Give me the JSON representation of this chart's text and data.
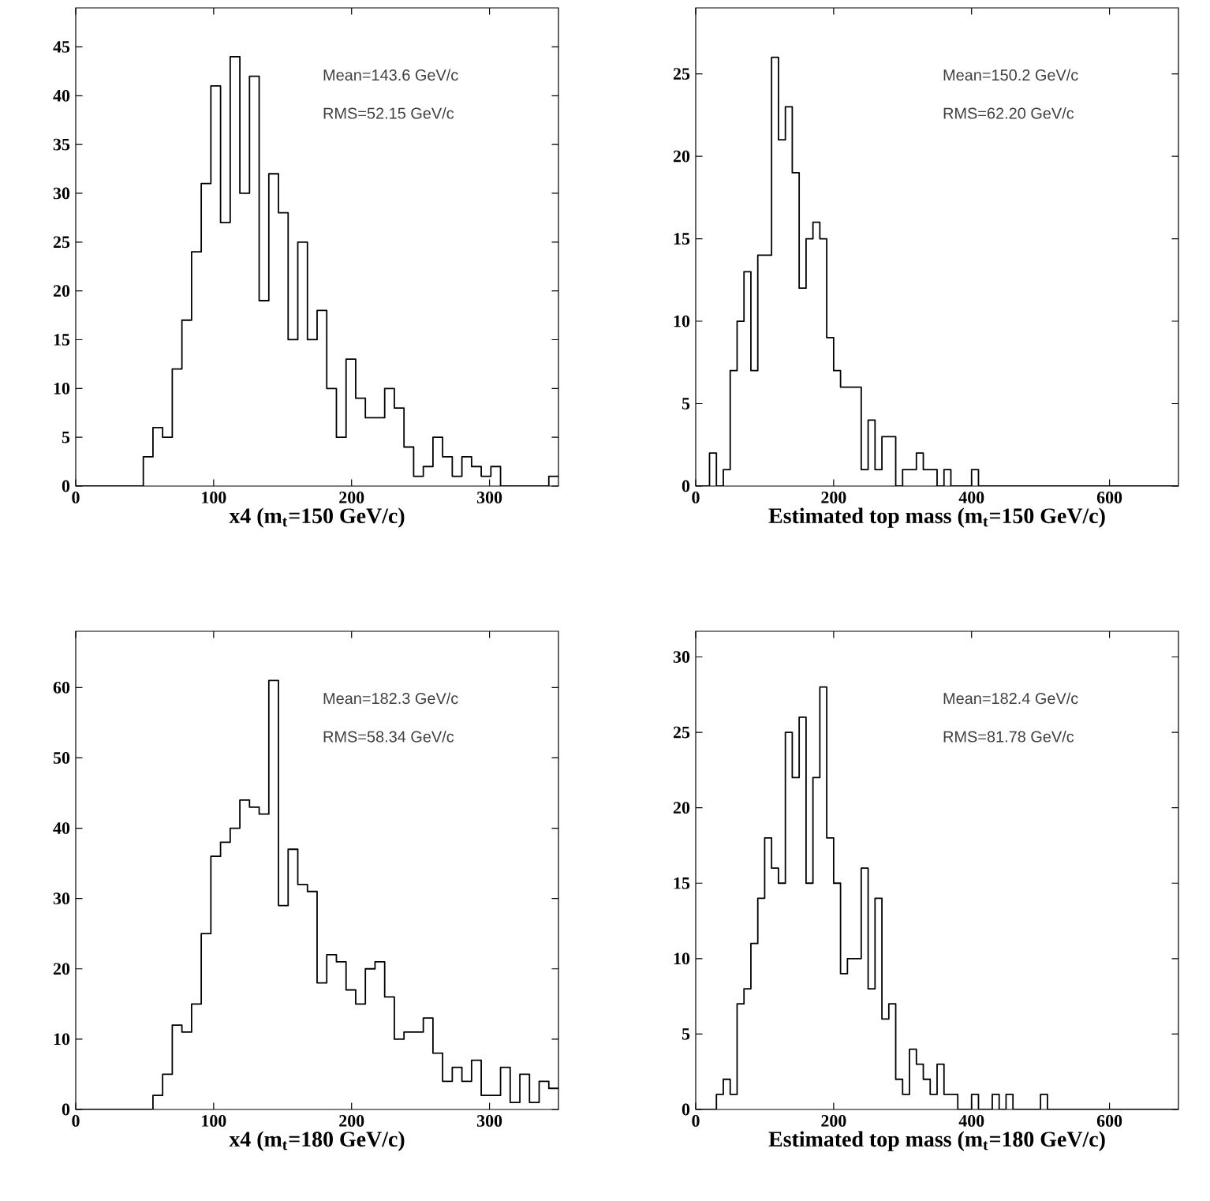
{
  "chart_data": [
    {
      "type": "histogram",
      "xlabel": "x4 (m$_{t}$=150 GeV/c)",
      "annotations": [
        "Mean=143.6 GeV/c",
        "RMS=52.15 GeV/c"
      ],
      "color": "#000000",
      "bins": [
        0,
        7,
        14,
        21,
        28,
        35,
        42,
        49,
        56,
        63,
        70,
        77,
        84,
        91,
        98,
        105,
        112,
        119,
        126,
        133,
        140,
        147,
        154,
        161,
        168,
        175,
        182,
        189,
        196,
        203,
        210,
        217,
        224,
        231,
        238,
        245,
        252,
        259,
        266,
        273,
        280,
        287,
        294,
        301,
        308,
        315,
        322,
        329,
        336,
        343,
        350
      ],
      "values": [
        0,
        0,
        0,
        0,
        0,
        0,
        0,
        3,
        6,
        5,
        12,
        17,
        24,
        31,
        41,
        27,
        44,
        30,
        42,
        19,
        32,
        28,
        15,
        25,
        15,
        18,
        10,
        5,
        13,
        9,
        7,
        7,
        10,
        8,
        4,
        1,
        2,
        5,
        3,
        1,
        3,
        2,
        1,
        2,
        0,
        0,
        0,
        0,
        0,
        1
      ],
      "xlim": [
        0,
        350
      ],
      "ylim": [
        0,
        49
      ],
      "xticks": [
        0,
        100,
        200,
        300
      ],
      "yticks": [
        0,
        5,
        10,
        15,
        20,
        25,
        30,
        35,
        40,
        45
      ]
    },
    {
      "type": "histogram",
      "xlabel": "Estimated top mass (m$_{t}$=150 GeV/c)",
      "annotations": [
        "Mean=150.2 GeV/c",
        "RMS=62.20 GeV/c"
      ],
      "color": "#000000",
      "bins": [
        0,
        10,
        20,
        30,
        40,
        50,
        60,
        70,
        80,
        90,
        100,
        110,
        120,
        130,
        140,
        150,
        160,
        170,
        180,
        190,
        200,
        210,
        220,
        230,
        240,
        250,
        260,
        270,
        280,
        290,
        300,
        310,
        320,
        330,
        340,
        350,
        360,
        370,
        380,
        390,
        400,
        410,
        420,
        430,
        440,
        450,
        460,
        470,
        480,
        490,
        500,
        510,
        520,
        530,
        540,
        550,
        560,
        570,
        580,
        590,
        600,
        610,
        620,
        630,
        640,
        650,
        660,
        670,
        680,
        690,
        700
      ],
      "values": [
        0,
        0,
        2,
        0,
        1,
        7,
        10,
        13,
        7,
        14,
        14,
        26,
        21,
        23,
        19,
        12,
        15,
        16,
        15,
        9,
        7,
        6,
        6,
        6,
        1,
        4,
        1,
        3,
        3,
        0,
        1,
        1,
        2,
        1,
        1,
        0,
        1,
        0,
        0,
        0,
        1,
        0,
        0,
        0,
        0,
        0,
        0,
        0,
        0,
        0,
        0,
        0,
        0,
        0,
        0,
        0,
        0,
        0,
        0,
        0,
        0,
        0,
        0,
        0,
        0,
        0,
        0,
        0,
        0,
        0
      ],
      "xlim": [
        0,
        700
      ],
      "ylim": [
        0,
        29
      ],
      "xticks": [
        0,
        200,
        400,
        600
      ],
      "yticks": [
        0,
        5,
        10,
        15,
        20,
        25
      ]
    },
    {
      "type": "histogram",
      "xlabel": "x4 (m$_{t}$=180 GeV/c)",
      "annotations": [
        "Mean=182.3 GeV/c",
        "RMS=58.34 GeV/c"
      ],
      "color": "#000000",
      "bins": [
        0,
        7,
        14,
        21,
        28,
        35,
        42,
        49,
        56,
        63,
        70,
        77,
        84,
        91,
        98,
        105,
        112,
        119,
        126,
        133,
        140,
        147,
        154,
        161,
        168,
        175,
        182,
        189,
        196,
        203,
        210,
        217,
        224,
        231,
        238,
        245,
        252,
        259,
        266,
        273,
        280,
        287,
        294,
        301,
        308,
        315,
        322,
        329,
        336,
        343,
        350
      ],
      "values": [
        0,
        0,
        0,
        0,
        0,
        0,
        0,
        0,
        2,
        5,
        12,
        11,
        15,
        25,
        36,
        38,
        40,
        44,
        43,
        42,
        61,
        29,
        37,
        32,
        31,
        18,
        22,
        21,
        17,
        15,
        20,
        21,
        16,
        10,
        11,
        11,
        13,
        8,
        4,
        6,
        4,
        7,
        2,
        2,
        6,
        1,
        5,
        1,
        4,
        3
      ],
      "xlim": [
        0,
        350
      ],
      "ylim": [
        0,
        68
      ],
      "xticks": [
        0,
        100,
        200,
        300
      ],
      "yticks": [
        0,
        10,
        20,
        30,
        40,
        50,
        60
      ]
    },
    {
      "type": "histogram",
      "xlabel": "Estimated top mass (m$_{t}$=180 GeV/c)",
      "annotations": [
        "Mean=182.4 GeV/c",
        "RMS=81.78 GeV/c"
      ],
      "color": "#000000",
      "bins": [
        0,
        10,
        20,
        30,
        40,
        50,
        60,
        70,
        80,
        90,
        100,
        110,
        120,
        130,
        140,
        150,
        160,
        170,
        180,
        190,
        200,
        210,
        220,
        230,
        240,
        250,
        260,
        270,
        280,
        290,
        300,
        310,
        320,
        330,
        340,
        350,
        360,
        370,
        380,
        390,
        400,
        410,
        420,
        430,
        440,
        450,
        460,
        470,
        480,
        490,
        500,
        510,
        520,
        530,
        540,
        550,
        560,
        570,
        580,
        590,
        600,
        610,
        620,
        630,
        640,
        650,
        660,
        670,
        680,
        690,
        700
      ],
      "values": [
        0,
        0,
        0,
        1,
        2,
        1,
        7,
        8,
        11,
        14,
        18,
        16,
        15,
        25,
        22,
        26,
        15,
        22,
        28,
        18,
        15,
        9,
        10,
        10,
        16,
        8,
        14,
        6,
        7,
        2,
        1,
        4,
        3,
        2,
        1,
        3,
        1,
        1,
        0,
        0,
        1,
        0,
        0,
        1,
        0,
        1,
        0,
        0,
        0,
        0,
        1,
        0,
        0,
        0,
        0,
        0,
        0,
        0,
        0,
        0,
        0,
        0,
        0,
        0,
        0,
        0,
        0,
        0,
        0,
        0
      ],
      "xlim": [
        0,
        700
      ],
      "ylim": [
        0,
        31.7
      ],
      "xticks": [
        0,
        200,
        400,
        600
      ],
      "yticks": [
        0,
        5,
        10,
        15,
        20,
        25,
        30
      ]
    }
  ]
}
